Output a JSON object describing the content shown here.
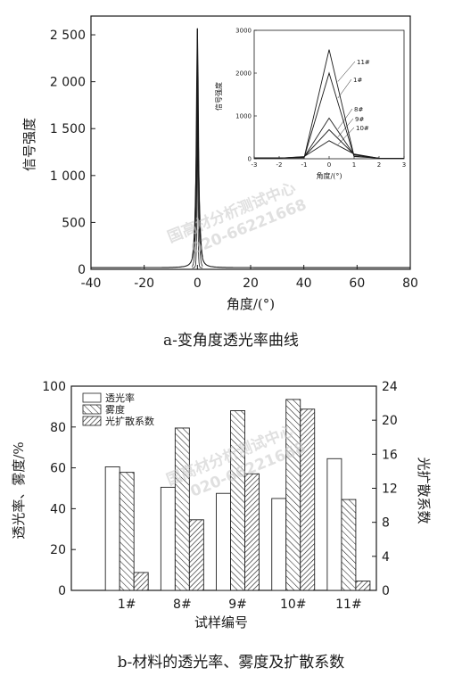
{
  "chart_data": [
    {
      "type": "line",
      "ylabel": "信号强度",
      "xlabel": "角度/(°)",
      "xlim": [
        -40,
        80
      ],
      "ylim": [
        0,
        2700
      ],
      "xticks": [
        "-40",
        "-20",
        "0",
        "20",
        "40",
        "60",
        "80"
      ],
      "yticks": [
        "0",
        "500",
        "1 000",
        "1 500",
        "2 000",
        "2 500"
      ],
      "peak": {
        "x": 0,
        "y": 2550
      },
      "caption": "a-变角度透光率曲线",
      "inset": {
        "type": "line",
        "ylabel": "信号强度",
        "xlabel": "角度/(°)",
        "xlim": [
          -3,
          3
        ],
        "ylim": [
          0,
          3000
        ],
        "xticks": [
          "-3",
          "-2",
          "-1",
          "0",
          "1",
          "2",
          "3"
        ],
        "yticks": [
          "0",
          "1000",
          "2000",
          "3000"
        ],
        "x": [
          -3,
          -2,
          -1,
          0,
          1,
          2,
          3
        ],
        "series": [
          {
            "name": "11#",
            "values": [
              20,
              20,
              25,
              2550,
              60,
              15,
              10
            ]
          },
          {
            "name": "1#",
            "values": [
              20,
              20,
              25,
              2000,
              50,
              15,
              10
            ]
          },
          {
            "name": "8#",
            "values": [
              15,
              15,
              40,
              950,
              90,
              10,
              10
            ]
          },
          {
            "name": "9#",
            "values": [
              15,
              15,
              45,
              680,
              100,
              10,
              10
            ]
          },
          {
            "name": "10#",
            "values": [
              15,
              15,
              50,
              420,
              110,
              10,
              10
            ]
          }
        ]
      }
    },
    {
      "type": "bar",
      "categories": [
        "1#",
        "8#",
        "9#",
        "10#",
        "11#"
      ],
      "xlabel": "试样编号",
      "ylabel": "透光率、雾度/%",
      "ylabel_right": "光扩散系数",
      "ylim": [
        0,
        100
      ],
      "ylim_right": [
        0,
        24
      ],
      "yticks": [
        "0",
        "20",
        "40",
        "60",
        "80",
        "100"
      ],
      "yticks_right": [
        "0",
        "4",
        "8",
        "12",
        "16",
        "20",
        "24"
      ],
      "series": [
        {
          "name": "透光率",
          "values": [
            60.5,
            50.5,
            47.5,
            45,
            64.5
          ]
        },
        {
          "name": "雾度",
          "values": [
            57.8,
            79.5,
            88,
            93.5,
            44.5
          ]
        },
        {
          "name": "光扩散系数",
          "values": [
            2.1,
            8.3,
            13.7,
            21.3,
            1.1
          ]
        }
      ],
      "caption": "b-材料的透光率、雾度及扩散系数"
    }
  ],
  "watermark": {
    "line1": "国高材分析测试中心",
    "line2": "020-66221668"
  }
}
